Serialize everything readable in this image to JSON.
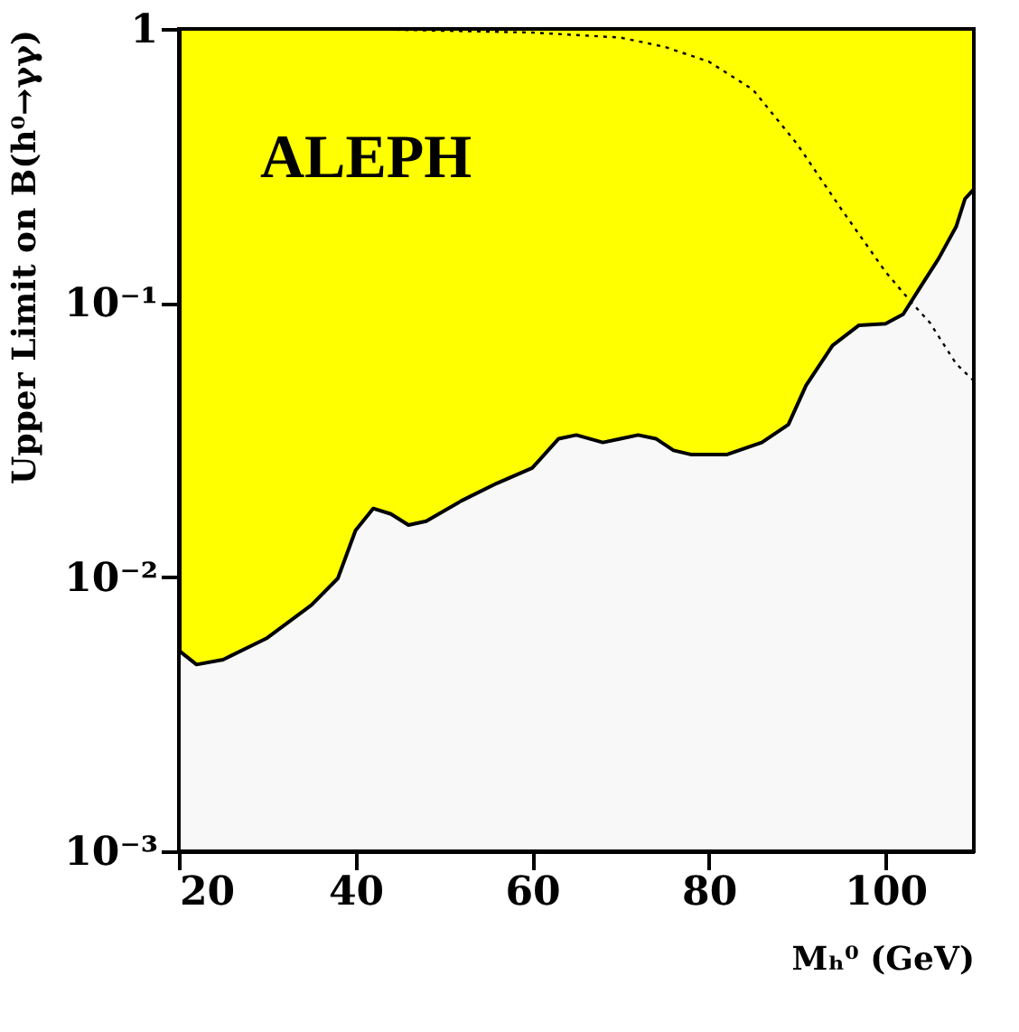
{
  "chart_data": {
    "type": "area",
    "xlabel": "Mₕ⁰ (GeV)",
    "ylabel": "Upper Limit on B(h⁰→γγ)",
    "log": "y",
    "xlim": [
      20,
      110
    ],
    "xticks": [
      20,
      40,
      60,
      80,
      100
    ],
    "ylim": [
      0.001,
      1
    ],
    "yticks": [
      {
        "value": 0.001,
        "label": "10⁻³"
      },
      {
        "value": 0.01,
        "label": "10⁻²"
      },
      {
        "value": 0.1,
        "label": "10⁻¹"
      },
      {
        "value": 1,
        "label": "1"
      }
    ],
    "grid": false,
    "annotations": [
      "ALEPH"
    ],
    "series": [
      {
        "type": "area",
        "color": "#f8f8f8",
        "x": [
          20,
          22,
          25,
          30,
          35,
          38,
          40,
          42,
          44,
          46,
          48,
          52,
          56,
          60,
          63,
          65,
          68,
          70,
          72,
          74,
          76,
          78,
          82,
          86,
          89,
          91,
          94,
          97,
          100,
          102,
          104,
          106,
          108,
          109,
          110
        ],
        "values": [
          0.0054,
          0.0048,
          0.005,
          0.006,
          0.0079,
          0.0099,
          0.0148,
          0.0178,
          0.017,
          0.0155,
          0.016,
          0.019,
          0.022,
          0.025,
          0.032,
          0.033,
          0.031,
          0.032,
          0.033,
          0.032,
          0.029,
          0.028,
          0.028,
          0.031,
          0.036,
          0.05,
          0.07,
          0.083,
          0.084,
          0.091,
          0.115,
          0.145,
          0.19,
          0.24,
          0.26
        ]
      },
      {
        "type": "line",
        "color": "#000000",
        "line_style": "dotted",
        "x": [
          20,
          40,
          60,
          70,
          75,
          80,
          85,
          90,
          95,
          100,
          103,
          105,
          108,
          110
        ],
        "values": [
          1,
          1,
          0.97,
          0.93,
          0.86,
          0.76,
          0.6,
          0.38,
          0.22,
          0.13,
          0.1,
          0.085,
          0.06,
          0.052
        ]
      }
    ]
  }
}
